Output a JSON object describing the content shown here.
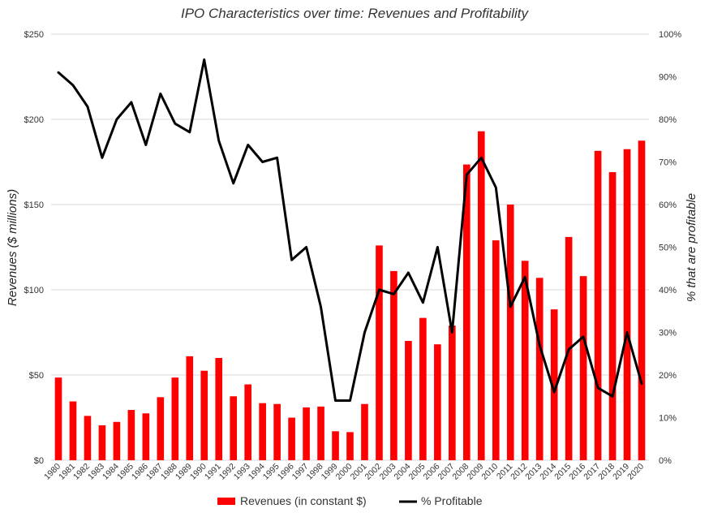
{
  "chart_data": {
    "type": "bar",
    "title": "IPO Characteristics over time: Revenues and Profitability",
    "ylabel": "Revenues ($ millions)",
    "y2label": "% that are profitable",
    "ylim": [
      0,
      250
    ],
    "y2lim": [
      0,
      100
    ],
    "y_ticks": [
      "$0",
      "$50",
      "$100",
      "$150",
      "$200",
      "$250"
    ],
    "y2_ticks": [
      "0%",
      "10%",
      "20%",
      "30%",
      "40%",
      "50%",
      "60%",
      "70%",
      "80%",
      "90%",
      "100%"
    ],
    "grid": true,
    "legend_position": "bottom",
    "categories": [
      "1980",
      "1981",
      "1982",
      "1983",
      "1984",
      "1985",
      "1986",
      "1987",
      "1988",
      "1989",
      "1990",
      "1991",
      "1992",
      "1993",
      "1994",
      "1995",
      "1996",
      "1997",
      "1998",
      "1999",
      "2000",
      "2001",
      "2002",
      "2003",
      "2004",
      "2005",
      "2006",
      "2007",
      "2008",
      "2009",
      "2010",
      "2011",
      "2012",
      "2013",
      "2014",
      "2015",
      "2016",
      "2017",
      "2018",
      "2019",
      "2020"
    ],
    "series": [
      {
        "name": "Revenues (in constant $)",
        "type": "bar",
        "axis": "left",
        "color": "#ff0000",
        "values": [
          48.5,
          34.5,
          26,
          20.5,
          22.5,
          29.5,
          27.5,
          37,
          48.5,
          61,
          52.5,
          60,
          37.5,
          44.5,
          33.5,
          33,
          25,
          31,
          31.5,
          17,
          16.5,
          33,
          126,
          111,
          70,
          83.5,
          68,
          79,
          173.5,
          193,
          129,
          150,
          117,
          107,
          88.5,
          131,
          108,
          181.5,
          169,
          182.5,
          187.5
        ]
      },
      {
        "name": "% Profitable",
        "type": "line",
        "axis": "right",
        "color": "#000000",
        "values": [
          91,
          88,
          83,
          71,
          80,
          84,
          74,
          86,
          79,
          77,
          94,
          75,
          65,
          74,
          70,
          71,
          47,
          50,
          36,
          14,
          14,
          30,
          40,
          39,
          44,
          37,
          50,
          30,
          67,
          71,
          64,
          36,
          43,
          27,
          16,
          26,
          29,
          17,
          15,
          30,
          18
        ]
      }
    ]
  }
}
